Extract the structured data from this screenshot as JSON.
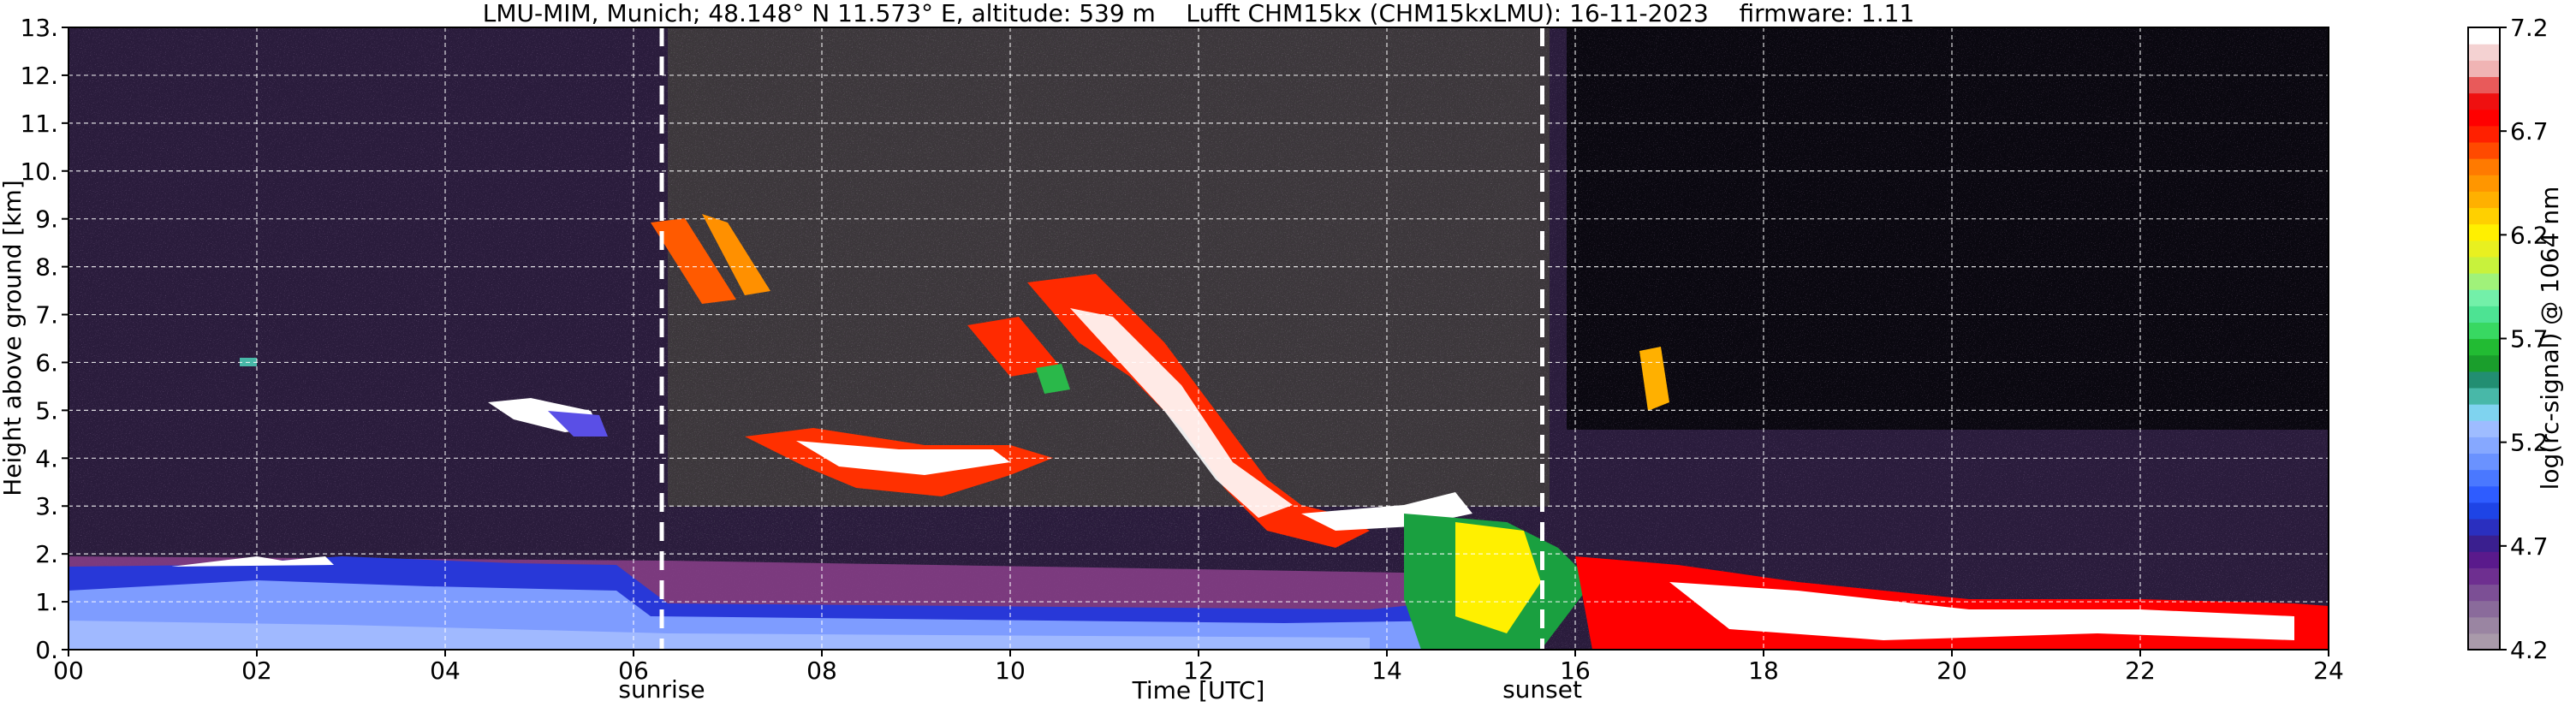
{
  "chart_data": {
    "type": "heatmap",
    "title": "LMU-MIM, Munich; 48.148° N 11.573° E, altitude: 539 m    Lufft CHM15kx (CHM15kxLMU): 16-11-2023    firmware: 1.11",
    "xlabel": "Time [UTC]",
    "ylabel": "Height above ground [km]",
    "x_ticks": [
      "00",
      "02",
      "04",
      "06",
      "08",
      "10",
      "12",
      "14",
      "16",
      "18",
      "20",
      "22",
      "24"
    ],
    "y_ticks": [
      "0.",
      "1.",
      "2.",
      "3.",
      "4.",
      "5.",
      "6.",
      "7.",
      "8.",
      "9.",
      "10.",
      "11.",
      "12.",
      "13."
    ],
    "xlim": [
      0,
      24
    ],
    "ylim": [
      0,
      13
    ],
    "grid": true,
    "annotations": [
      {
        "label": "sunrise",
        "x": 6.3
      },
      {
        "label": "sunset",
        "x": 15.65
      }
    ],
    "colorbar": {
      "label": "log(rc-signal) @ 1064 nm",
      "range": [
        4.2,
        7.2
      ],
      "tick_labels": [
        "4.2",
        "4.7",
        "5.2",
        "5.7",
        "6.2",
        "6.7",
        "7.2"
      ],
      "tick_values": [
        4.2,
        4.7,
        5.2,
        5.7,
        6.2,
        6.7,
        7.2
      ],
      "colors": [
        "#a99aaa",
        "#9a85a2",
        "#8a6b9b",
        "#7c4f95",
        "#6e2f90",
        "#5a1a8c",
        "#3a1f8f",
        "#2a2fbf",
        "#1e44e6",
        "#2e5cff",
        "#4a78ff",
        "#6a92ff",
        "#86a8ff",
        "#9ebcff",
        "#7fd3ef",
        "#48b8a8",
        "#228e72",
        "#1a9e2c",
        "#22bb33",
        "#38d862",
        "#4de393",
        "#73f0a9",
        "#a0f27a",
        "#c8f23c",
        "#e8f020",
        "#fff000",
        "#ffd000",
        "#ffb000",
        "#ff9600",
        "#ff7a00",
        "#ff4a00",
        "#ff2000",
        "#ff0000",
        "#ef1010",
        "#e85a5a",
        "#f0b4b4",
        "#f4d2d2",
        "#ffffff"
      ]
    },
    "features": [
      {
        "type": "boundary layer aerosol",
        "x": [
          0,
          15
        ],
        "height_km": [
          0,
          2
        ]
      },
      {
        "type": "cloud",
        "x": [
          7.8,
          11
        ],
        "height_km": [
          3.4,
          4.6
        ]
      },
      {
        "type": "cloud band",
        "x": [
          6.3,
          13.2
        ],
        "height_km": [
          2.5,
          8.8
        ]
      },
      {
        "type": "low cloud",
        "x": [
          14.2,
          24
        ],
        "height_km": [
          0.1,
          2.8
        ]
      }
    ]
  }
}
